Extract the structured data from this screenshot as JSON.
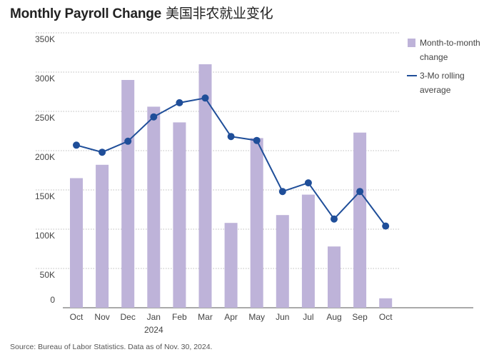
{
  "title_en": "Monthly Payroll Change",
  "title_zh": "美国非农就业变化",
  "source": "Source: Bureau of Labor Statistics. Data as of Nov. 30, 2024.",
  "colors": {
    "bar": "#beb3d9",
    "line": "#1f4e99",
    "grid": "#bdbdbd",
    "text": "#444444"
  },
  "legend": {
    "bars_label": "Month-to-month change",
    "line_label": "3-Mo rolling average"
  },
  "chart_data": {
    "type": "bar",
    "title": "Monthly Payroll Change 美国非农就业变化",
    "categories": [
      "Oct",
      "Nov",
      "Dec",
      "Jan",
      "Feb",
      "Mar",
      "Apr",
      "May",
      "Jun",
      "Jul",
      "Aug",
      "Sep",
      "Oct"
    ],
    "year_label": "2024",
    "year_label_under": "Jan",
    "yticks": [
      0,
      50000,
      100000,
      150000,
      200000,
      250000,
      300000,
      350000
    ],
    "ytick_labels": [
      "0",
      "50K",
      "100K",
      "150K",
      "200K",
      "250K",
      "300K",
      "350K"
    ],
    "ylim": [
      0,
      350000
    ],
    "series": [
      {
        "name": "Month-to-month change",
        "type": "bar",
        "values": [
          165000,
          182000,
          290000,
          256000,
          236000,
          310000,
          108000,
          216000,
          118000,
          144000,
          78000,
          223000,
          12000
        ]
      },
      {
        "name": "3-Mo rolling average",
        "type": "line",
        "values": [
          207000,
          198000,
          212000,
          243000,
          261000,
          267000,
          218000,
          213000,
          148000,
          159000,
          113000,
          148000,
          104000
        ]
      }
    ]
  }
}
